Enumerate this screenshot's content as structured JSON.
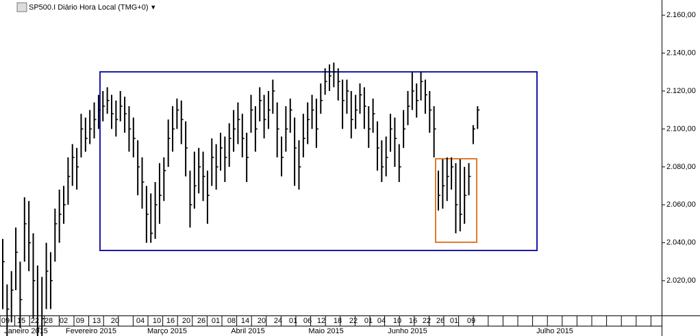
{
  "chart_data": {
    "type": "ohlc",
    "title": "SP500.I Diário Hora Local (TMG+0)",
    "color": "#000000",
    "high": [
      2042,
      2018,
      2025,
      2048,
      2030,
      2064,
      2062,
      2045,
      2028,
      2022,
      2040,
      2035,
      2058,
      2068,
      2070,
      2085,
      2092,
      2090,
      2108,
      2106,
      2110,
      2114,
      2118,
      2120,
      2122,
      2118,
      2115,
      2120,
      2117,
      2112,
      2106,
      2094,
      2085,
      2070,
      2066,
      2072,
      2082,
      2085,
      2105,
      2112,
      2116,
      2115,
      2104,
      2078,
      2088,
      2090,
      2088,
      2078,
      2095,
      2092,
      2098,
      2096,
      2103,
      2110,
      2114,
      2108,
      2098,
      2118,
      2112,
      2122,
      2118,
      2120,
      2126,
      2114,
      2096,
      2112,
      2116,
      2106,
      2094,
      2108,
      2114,
      2118,
      2116,
      2124,
      2132,
      2134,
      2135,
      2132,
      2126,
      2126,
      2120,
      2118,
      2124,
      2122,
      2112,
      2116,
      2104,
      2094,
      2096,
      2108,
      2106,
      2092,
      2110,
      2120,
      2130,
      2124,
      2130,
      2126,
      2120,
      2112,
      2078,
      2084,
      2085,
      2085,
      2082,
      2084,
      2080,
      2082,
      2102,
      2112
    ],
    "low": [
      2005,
      1990,
      1998,
      2015,
      1995,
      2030,
      2025,
      2000,
      1990,
      1990,
      2005,
      2005,
      2030,
      2040,
      2050,
      2060,
      2070,
      2068,
      2085,
      2088,
      2092,
      2095,
      2100,
      2104,
      2108,
      2100,
      2096,
      2104,
      2098,
      2088,
      2085,
      2065,
      2058,
      2040,
      2040,
      2042,
      2050,
      2062,
      2080,
      2088,
      2100,
      2092,
      2075,
      2048,
      2058,
      2066,
      2062,
      2050,
      2070,
      2068,
      2078,
      2072,
      2080,
      2088,
      2092,
      2085,
      2072,
      2098,
      2088,
      2104,
      2095,
      2100,
      2108,
      2085,
      2075,
      2088,
      2098,
      2070,
      2068,
      2085,
      2092,
      2100,
      2090,
      2108,
      2118,
      2120,
      2122,
      2115,
      2100,
      2108,
      2095,
      2100,
      2108,
      2100,
      2090,
      2098,
      2078,
      2072,
      2075,
      2088,
      2080,
      2072,
      2090,
      2102,
      2110,
      2106,
      2115,
      2108,
      2098,
      2085,
      2057,
      2058,
      2062,
      2068,
      2045,
      2046,
      2050,
      2065,
      2092,
      2100
    ],
    "close": [
      2030,
      2005,
      2015,
      2035,
      2010,
      2050,
      2040,
      2020,
      1995,
      2000,
      2025,
      2020,
      2050,
      2055,
      2060,
      2075,
      2085,
      2080,
      2100,
      2095,
      2100,
      2105,
      2110,
      2112,
      2115,
      2108,
      2105,
      2112,
      2108,
      2100,
      2095,
      2080,
      2072,
      2055,
      2045,
      2060,
      2065,
      2078,
      2095,
      2100,
      2110,
      2105,
      2090,
      2060,
      2070,
      2080,
      2075,
      2065,
      2085,
      2080,
      2090,
      2085,
      2095,
      2100,
      2105,
      2095,
      2085,
      2110,
      2100,
      2115,
      2105,
      2110,
      2120,
      2100,
      2085,
      2100,
      2110,
      2090,
      2080,
      2095,
      2105,
      2110,
      2100,
      2115,
      2125,
      2128,
      2130,
      2125,
      2115,
      2120,
      2105,
      2110,
      2118,
      2112,
      2100,
      2108,
      2090,
      2080,
      2085,
      2100,
      2095,
      2080,
      2100,
      2112,
      2120,
      2115,
      2125,
      2118,
      2110,
      2100,
      2065,
      2070,
      2075,
      2080,
      2060,
      2055,
      2065,
      2075,
      2100,
      2110
    ],
    "ylim": [
      2002,
      2168
    ],
    "yticks": [
      {
        "value": 2020,
        "label": "2.020,00"
      },
      {
        "value": 2040,
        "label": "2.040,00"
      },
      {
        "value": 2060,
        "label": "2.060,00"
      },
      {
        "value": 2080,
        "label": "2.080,00"
      },
      {
        "value": 2100,
        "label": "2.100,00"
      },
      {
        "value": 2120,
        "label": "2.120,00"
      },
      {
        "value": 2140,
        "label": "2.140,00"
      },
      {
        "value": 2160,
        "label": "2.160,00"
      }
    ],
    "x_day_labels": [
      "09",
      "15",
      "22",
      "28",
      "02",
      "09",
      "13",
      "20",
      "04",
      "10",
      "16",
      "20",
      "26",
      "01",
      "08",
      "14",
      "20",
      "24",
      "01",
      "06",
      "12",
      "18",
      "22",
      "01",
      "04",
      "10",
      "16",
      "22",
      "26",
      "01",
      "09"
    ],
    "x_month_labels": [
      "Janeiro 2015",
      "Fevereiro 2015",
      "Março 2015",
      "Abril 2015",
      "Maio 2015",
      "Junho 2015",
      "Julho 2015"
    ]
  }
}
